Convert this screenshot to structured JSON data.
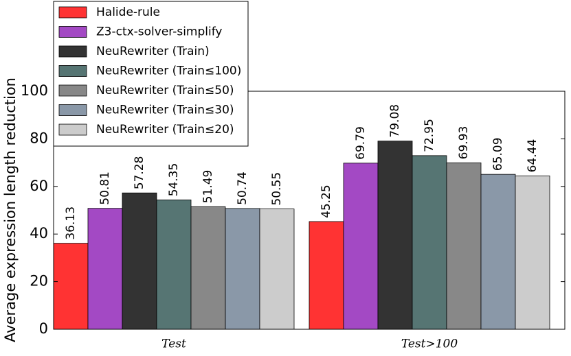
{
  "chart_data": {
    "type": "bar",
    "y_label": "Average expression length reduction",
    "categories": [
      "Test",
      "Test>100"
    ],
    "series": [
      {
        "name": "Halide-rule",
        "color": "#ff3333",
        "values": [
          36.13,
          45.25
        ]
      },
      {
        "name": "Z3-ctx-solver-simplify",
        "color": "#a349c4",
        "values": [
          50.81,
          69.79
        ]
      },
      {
        "name": "NeuRewriter (Train)",
        "color": "#333333",
        "values": [
          57.28,
          79.08
        ]
      },
      {
        "name": "NeuRewriter (Train≤100)",
        "color": "#567573",
        "values": [
          54.35,
          72.95
        ]
      },
      {
        "name": "NeuRewriter (Train≤50)",
        "color": "#888888",
        "values": [
          51.49,
          69.93
        ]
      },
      {
        "name": "NeuRewriter (Train≤30)",
        "color": "#8a98a8",
        "values": [
          50.74,
          65.09
        ]
      },
      {
        "name": "NeuRewriter (Train≤20)",
        "color": "#cccccc",
        "values": [
          50.55,
          64.44
        ]
      }
    ],
    "ylim": [
      0,
      100
    ],
    "yticks": [
      0,
      20,
      40,
      60,
      80,
      100
    ],
    "legend": "upper left"
  }
}
